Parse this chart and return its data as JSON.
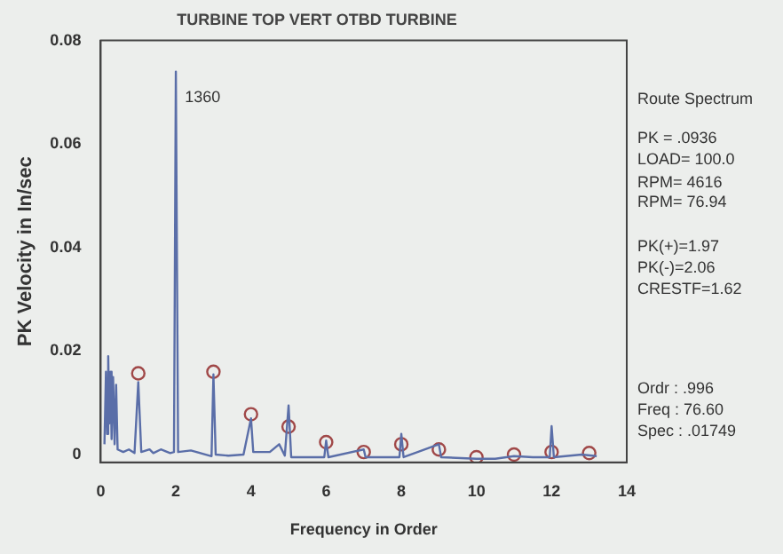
{
  "chart_data": {
    "type": "line",
    "title": "TURBINE TOP VERT OTBD TURBINE",
    "xlabel": "Frequency in Order",
    "ylabel": "PK Velocity in In/sec",
    "xlim": [
      0,
      14
    ],
    "xticks": [
      0,
      2,
      4,
      6,
      8,
      10,
      12,
      14
    ],
    "ylim": [
      -0.0015,
      0.08
    ],
    "yticks": [
      0,
      0.02,
      0.04,
      0.06,
      0.08
    ],
    "grid": false,
    "legend": false,
    "series": [
      {
        "color": "#5a6ea8",
        "marker": "none",
        "x": [
          0.1,
          0.14,
          0.17,
          0.2,
          0.23,
          0.26,
          0.29,
          0.33,
          0.37,
          0.41,
          0.45,
          0.6,
          0.75,
          0.9,
          1.0,
          1.08,
          1.3,
          1.4,
          1.6,
          1.85,
          1.95,
          2.0,
          2.06,
          2.4,
          2.8,
          2.95,
          3.0,
          3.06,
          3.4,
          3.8,
          4.0,
          4.06,
          4.5,
          4.75,
          4.9,
          5.0,
          5.07,
          5.95,
          6.0,
          6.06,
          7.0,
          7.05,
          7.95,
          8.0,
          8.06,
          9.0,
          9.06,
          10.0,
          10.5,
          11.0,
          11.5,
          11.95,
          12.0,
          12.06,
          12.8,
          13.2
        ],
        "values": [
          0.002,
          0.016,
          0.004,
          0.019,
          0.006,
          0.016,
          0.003,
          0.015,
          0.002,
          0.0135,
          0.001,
          0.0005,
          0.001,
          0.0003,
          0.014,
          0.0005,
          0.001,
          0.0003,
          0.001,
          0.0003,
          0.0005,
          0.074,
          0.0005,
          0.0008,
          0,
          -0.0003,
          0.0155,
          0,
          -0.0002,
          0,
          0.007,
          0.0005,
          0.0005,
          0.002,
          -0.0002,
          0.0095,
          -0.0005,
          -0.0005,
          0.0027,
          -0.0005,
          0.001,
          -0.0005,
          -0.0005,
          0.004,
          -0.0005,
          0.002,
          -0.0005,
          -0.0008,
          -0.0008,
          -0.0003,
          -0.0005,
          -0.0005,
          0.0055,
          -0.0005,
          0,
          -0.0003
        ]
      },
      {
        "type": "scatter",
        "color": "#a04848",
        "marker": "circle",
        "x": [
          1,
          2,
          3,
          4,
          5,
          6,
          7,
          8,
          9,
          10,
          11,
          12,
          13
        ],
        "values": [
          0.0157,
          null,
          0.016,
          0.0078,
          0.0054,
          0.0024,
          0.0005,
          0.002,
          0.001,
          -0.0005,
          0,
          0.0005,
          0.0003
        ]
      }
    ],
    "annotations": [
      {
        "text": "1360",
        "x": 2.05,
        "y": 0.069
      },
      "Route Spectrum",
      "PK = .0936",
      "LOAD= 100.0",
      "RPM= 4616",
      "RPM= 76.94",
      "PK(+)=1.97",
      "PK(-)=2.06",
      "CRESTF=1.62",
      "Ordr : .996",
      "Freq : 76.60",
      "Spec : .01749"
    ]
  }
}
